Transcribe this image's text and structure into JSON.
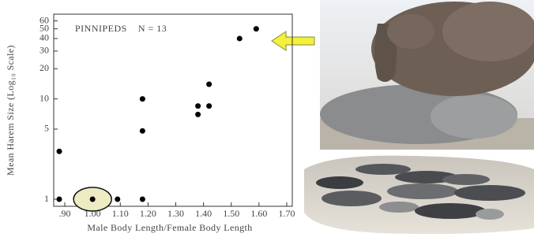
{
  "chart_data": {
    "type": "scatter",
    "title": "PINNIPEDS    N = 13",
    "x_label": "Male Body Length/Female Body Length",
    "y_label": "Mean Harem Size (Log₁₀ Scale)",
    "x": [
      0.88,
      0.88,
      1.0,
      1.09,
      1.18,
      1.18,
      1.18,
      1.38,
      1.38,
      1.42,
      1.42,
      1.53,
      1.59
    ],
    "values": [
      1,
      3,
      1,
      1,
      1,
      4.8,
      10,
      7,
      8.5,
      8.5,
      14,
      40,
      50
    ],
    "color": "#000000",
    "xlim": [
      0.86,
      1.72
    ],
    "xticks": [
      {
        "value": 0.9,
        "label": ".90"
      },
      {
        "value": 1.0,
        "label": "1.00"
      },
      {
        "value": 1.1,
        "label": "1.10"
      },
      {
        "value": 1.2,
        "label": "1.20"
      },
      {
        "value": 1.3,
        "label": "1.30"
      },
      {
        "value": 1.4,
        "label": "1.40"
      },
      {
        "value": 1.5,
        "label": "1.50"
      },
      {
        "value": 1.6,
        "label": "1.60"
      },
      {
        "value": 1.7,
        "label": "1.70"
      }
    ],
    "ylim": [
      0.85,
      70
    ],
    "yticks": [
      1,
      5,
      10,
      20,
      30,
      40,
      50,
      60
    ],
    "log_y": true,
    "grid": false
  }
}
